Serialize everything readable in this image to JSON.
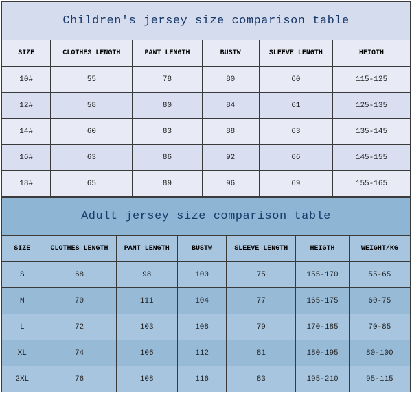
{
  "children": {
    "title": "Children's jersey size comparison table",
    "columns": [
      "SIZE",
      "CLOTHES LENGTH",
      "PANT LENGTH",
      "BUSTW",
      "SLEEVE LENGTH",
      "HEIGTH"
    ],
    "col_widths": [
      "12%",
      "20%",
      "17%",
      "14%",
      "18%",
      "19%"
    ],
    "rows": [
      [
        "10#",
        "55",
        "78",
        "80",
        "60",
        "115-125"
      ],
      [
        "12#",
        "58",
        "80",
        "84",
        "61",
        "125-135"
      ],
      [
        "14#",
        "60",
        "83",
        "88",
        "63",
        "135-145"
      ],
      [
        "16#",
        "63",
        "86",
        "92",
        "66",
        "145-155"
      ],
      [
        "18#",
        "65",
        "89",
        "96",
        "69",
        "155-165"
      ]
    ],
    "title_bg": "#d4dcee",
    "header_bg": "#e8ebf5",
    "row_odd_bg": "#e8ebf5",
    "row_even_bg": "#d9dff0",
    "border_color": "#3a3a3a",
    "title_color": "#1a3a6a",
    "title_fontsize": 17,
    "header_fontsize": 10,
    "cell_fontsize": 11
  },
  "adult": {
    "title": "Adult jersey size comparison table",
    "columns": [
      "SIZE",
      "CLOTHES LENGTH",
      "PANT LENGTH",
      "BUSTW",
      "SLEEVE LENGTH",
      "HEIGTH",
      "WEIGHT/KG"
    ],
    "col_widths": [
      "10%",
      "18%",
      "15%",
      "12%",
      "17%",
      "13%",
      "15%"
    ],
    "rows": [
      [
        "S",
        "68",
        "98",
        "100",
        "75",
        "155-170",
        "55-65"
      ],
      [
        "M",
        "70",
        "111",
        "104",
        "77",
        "165-175",
        "60-75"
      ],
      [
        "L",
        "72",
        "103",
        "108",
        "79",
        "170-185",
        "70-85"
      ],
      [
        "XL",
        "74",
        "106",
        "112",
        "81",
        "180-195",
        "80-100"
      ],
      [
        "2XL",
        "76",
        "108",
        "116",
        "83",
        "195-210",
        "95-115"
      ]
    ],
    "title_bg": "#8eb5d4",
    "header_bg": "#a7c5de",
    "row_odd_bg": "#a7c5de",
    "row_even_bg": "#97bad7",
    "border_color": "#3a3a3a",
    "title_color": "#1a3a6a",
    "title_fontsize": 17,
    "header_fontsize": 10,
    "cell_fontsize": 11
  }
}
